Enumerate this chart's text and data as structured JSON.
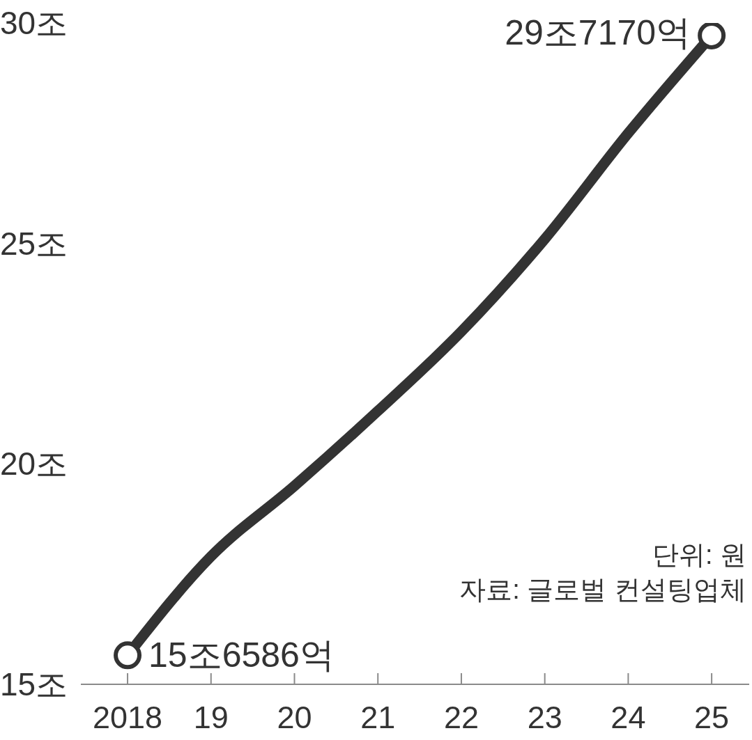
{
  "chart_data": {
    "type": "line",
    "x": [
      2018,
      2019,
      2020,
      2021,
      2022,
      2023,
      2024,
      2025
    ],
    "xlim": [
      2017.44,
      2025.45
    ],
    "xticks": [
      {
        "value": 2018,
        "label": "2018"
      },
      {
        "value": 2019,
        "label": "19"
      },
      {
        "value": 2020,
        "label": "20"
      },
      {
        "value": 2021,
        "label": "21"
      },
      {
        "value": 2022,
        "label": "22"
      },
      {
        "value": 2023,
        "label": "23"
      },
      {
        "value": 2024,
        "label": "24"
      },
      {
        "value": 2025,
        "label": "25"
      }
    ],
    "ylim": [
      15,
      30
    ],
    "yticks": [
      {
        "value": 15,
        "label": "15조"
      },
      {
        "value": 20,
        "label": "20조"
      },
      {
        "value": 25,
        "label": "25조"
      },
      {
        "value": 30,
        "label": "30조"
      }
    ],
    "series": [
      {
        "color": "#333333",
        "values": [
          15.6586,
          17.9,
          19.5,
          21.2,
          23.0,
          25.1,
          27.5,
          29.717
        ],
        "marker": "none"
      },
      {
        "type": "scatter",
        "x": [
          2018,
          2025
        ],
        "color": "#333333",
        "values": [
          15.6586,
          29.717
        ],
        "value_labels": [
          "15조6586억",
          "29조7170억"
        ],
        "marker": "circle"
      }
    ],
    "annotations": [
      "단위: 원",
      "자료: 글로벌 컨설팅업체"
    ]
  }
}
